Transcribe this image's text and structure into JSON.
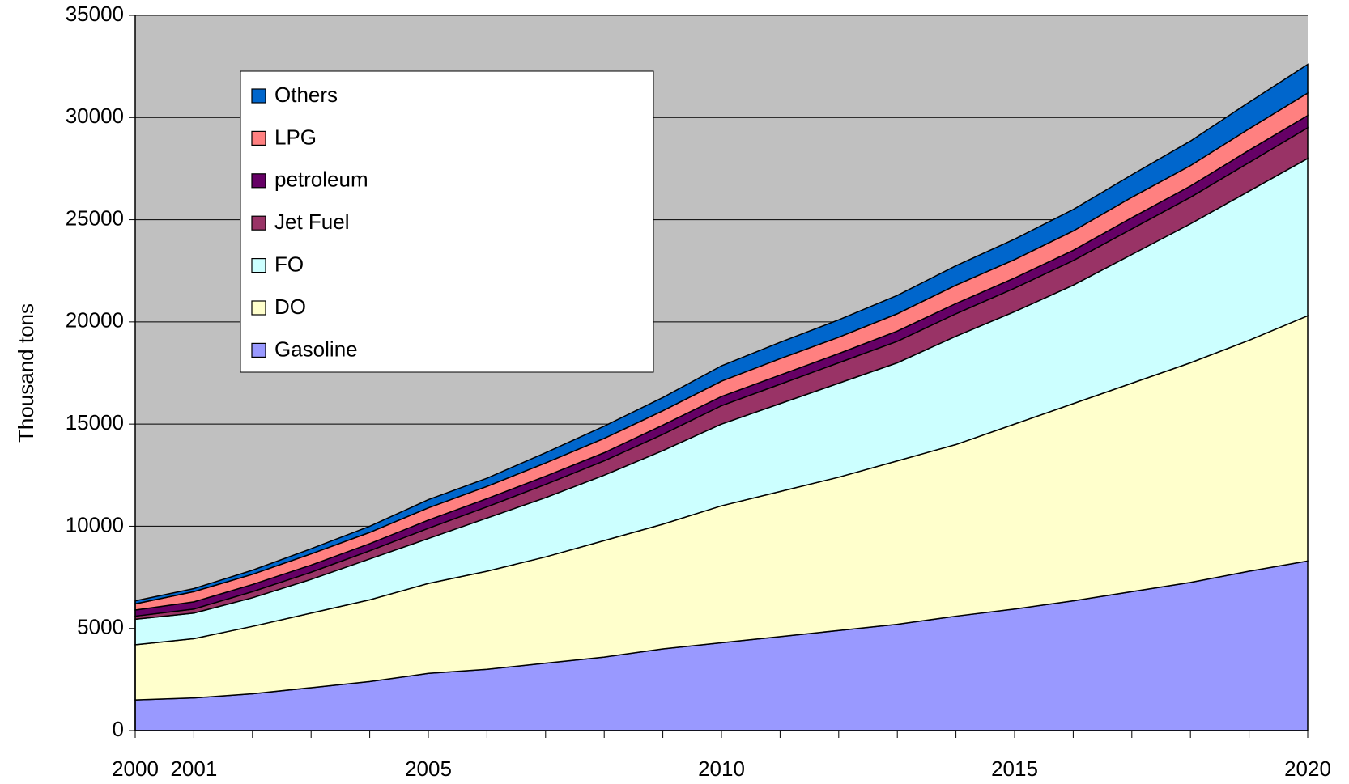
{
  "chart_data": {
    "type": "stacked_area",
    "y_label": "Thousand tons",
    "x": [
      2000,
      2001,
      2002,
      2003,
      2004,
      2005,
      2006,
      2007,
      2008,
      2009,
      2010,
      2011,
      2012,
      2013,
      2014,
      2015,
      2016,
      2017,
      2018,
      2019,
      2020
    ],
    "xlim": [
      2000,
      2020
    ],
    "xticks": [
      2000,
      2001,
      2005,
      2010,
      2015,
      2020
    ],
    "ylim": [
      0,
      35000
    ],
    "yticks": [
      0,
      5000,
      10000,
      15000,
      20000,
      25000,
      30000,
      35000
    ],
    "grid": true,
    "background": "#c0c0c0",
    "series": [
      {
        "name": "Gasoline",
        "color": "#9999ff",
        "values": [
          1500,
          1600,
          1800,
          2100,
          2400,
          2800,
          3000,
          3300,
          3600,
          4000,
          4300,
          4600,
          4900,
          5200,
          5600,
          5950,
          6350,
          6800,
          7250,
          7800,
          8300
        ]
      },
      {
        "name": "DO",
        "color": "#ffffcc",
        "values": [
          2700,
          2900,
          3300,
          3650,
          4000,
          4400,
          4800,
          5200,
          5700,
          6100,
          6700,
          7100,
          7500,
          8000,
          8400,
          9050,
          9650,
          10200,
          10750,
          11300,
          12000
        ]
      },
      {
        "name": "FO",
        "color": "#ccffff",
        "values": [
          1250,
          1250,
          1400,
          1650,
          2000,
          2200,
          2600,
          2900,
          3200,
          3600,
          4000,
          4300,
          4600,
          4800,
          5300,
          5500,
          5800,
          6300,
          6800,
          7300,
          7700
        ]
      },
      {
        "name": "Jet Fuel",
        "color": "#993366",
        "values": [
          150,
          200,
          300,
          350,
          400,
          500,
          550,
          650,
          700,
          800,
          900,
          950,
          1000,
          1050,
          1100,
          1150,
          1200,
          1250,
          1300,
          1400,
          1500
        ]
      },
      {
        "name": "petroleum",
        "color": "#660066",
        "values": [
          300,
          350,
          350,
          350,
          350,
          400,
          400,
          400,
          400,
          450,
          450,
          450,
          450,
          500,
          500,
          500,
          500,
          550,
          550,
          600,
          600
        ]
      },
      {
        "name": "LPG",
        "color": "#ff8080",
        "values": [
          300,
          500,
          500,
          550,
          550,
          600,
          600,
          650,
          700,
          700,
          750,
          800,
          800,
          850,
          900,
          900,
          950,
          1000,
          1000,
          1050,
          1100
        ]
      },
      {
        "name": "Others",
        "color": "#0066cc",
        "values": [
          150,
          150,
          200,
          250,
          300,
          400,
          400,
          500,
          600,
          650,
          750,
          800,
          850,
          900,
          950,
          1000,
          1050,
          1100,
          1200,
          1300,
          1400
        ]
      }
    ]
  }
}
